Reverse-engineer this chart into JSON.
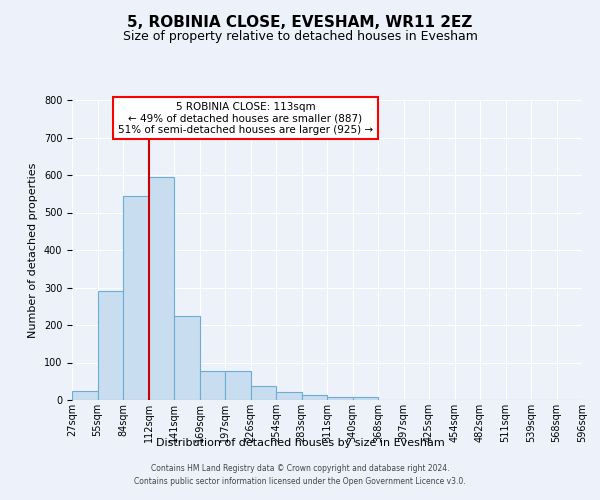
{
  "title": "5, ROBINIA CLOSE, EVESHAM, WR11 2EZ",
  "subtitle": "Size of property relative to detached houses in Evesham",
  "xlabel": "Distribution of detached houses by size in Evesham",
  "ylabel": "Number of detached properties",
  "bar_values": [
    25,
    290,
    545,
    595,
    225,
    78,
    78,
    37,
    22,
    13,
    8,
    7,
    0,
    0,
    0,
    0,
    0,
    0,
    0,
    0
  ],
  "bin_labels": [
    "27sqm",
    "55sqm",
    "84sqm",
    "112sqm",
    "141sqm",
    "169sqm",
    "197sqm",
    "226sqm",
    "254sqm",
    "283sqm",
    "311sqm",
    "340sqm",
    "368sqm",
    "397sqm",
    "425sqm",
    "454sqm",
    "482sqm",
    "511sqm",
    "539sqm",
    "568sqm",
    "596sqm"
  ],
  "bar_color": "#c9ddf0",
  "bar_edge_color": "#6aaed6",
  "vline_color": "#cc0000",
  "vline_pos": 2.5,
  "ylim": [
    0,
    800
  ],
  "yticks": [
    0,
    100,
    200,
    300,
    400,
    500,
    600,
    700,
    800
  ],
  "annotation_title": "5 ROBINIA CLOSE: 113sqm",
  "annotation_line1": "← 49% of detached houses are smaller (887)",
  "annotation_line2": "51% of semi-detached houses are larger (925) →",
  "footer_line1": "Contains HM Land Registry data © Crown copyright and database right 2024.",
  "footer_line2": "Contains public sector information licensed under the Open Government Licence v3.0.",
  "bg_color": "#edf2fa",
  "grid_color": "#ffffff",
  "title_fontsize": 11,
  "subtitle_fontsize": 9,
  "axis_label_fontsize": 8,
  "tick_fontsize": 7,
  "footer_fontsize": 5.5
}
